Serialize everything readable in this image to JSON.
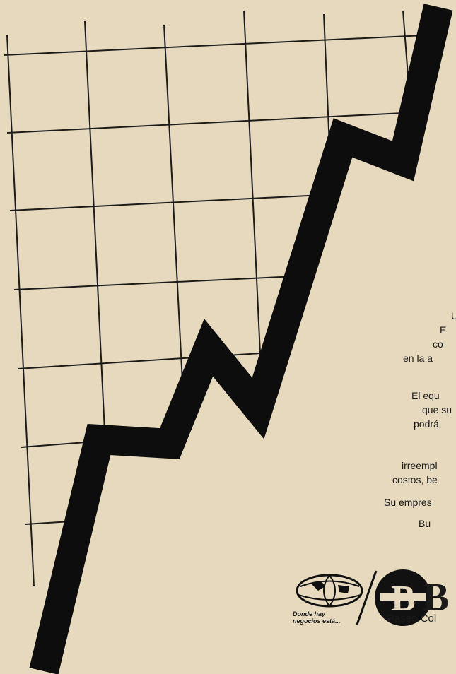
{
  "ad": {
    "body_lines": [
      "U",
      "E",
      "co",
      "en la a",
      "El equ",
      "que su",
      "podrá",
      "irreempl",
      "costos, be",
      "Su empres",
      "Bu"
    ],
    "logo": {
      "slogan_line1": "Donde hay",
      "slogan_line2": "negocios está...",
      "brand_letter": "B"
    },
    "address": "Paseo Col"
  }
}
